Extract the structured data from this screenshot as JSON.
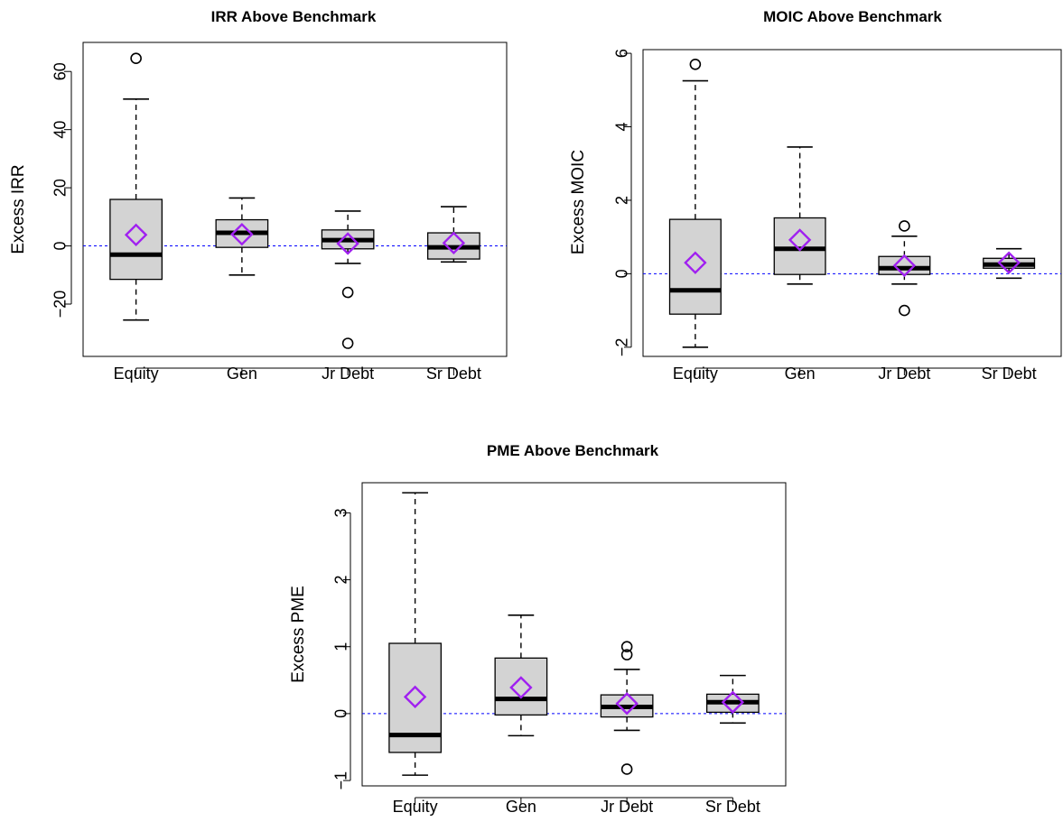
{
  "colors": {
    "box_fill": "#d3d3d3",
    "outline": "#000000",
    "mean_marker": "#a020f0",
    "reference_line": "#0000ff"
  },
  "chart_data": [
    {
      "type": "box",
      "title": "IRR Above Benchmark",
      "xlabel": "",
      "ylabel": "Excess IRR",
      "categories": [
        "Equity",
        "Gen",
        "Jr Debt",
        "Sr Debt"
      ],
      "y_ticks": [
        -20,
        0,
        20,
        40,
        60
      ],
      "y_tick_labels": [
        "−20",
        "0",
        "20",
        "40",
        "60"
      ],
      "ylim": [
        -38,
        70
      ],
      "reference_line": 0,
      "mean_marker": "diamond",
      "boxes": [
        {
          "lower_whisker": -25.5,
          "q1": -11.5,
          "median": -3,
          "q3": 16,
          "upper_whisker": 50.5,
          "mean": 3.8,
          "outliers": [
            64.5
          ]
        },
        {
          "lower_whisker": -10,
          "q1": -0.5,
          "median": 4.5,
          "q3": 9,
          "upper_whisker": 16.5,
          "mean": 4,
          "outliers": []
        },
        {
          "lower_whisker": -6,
          "q1": -1,
          "median": 2,
          "q3": 5.5,
          "upper_whisker": 12,
          "mean": 0.8,
          "outliers": [
            -16,
            -33.5
          ]
        },
        {
          "lower_whisker": -5.5,
          "q1": -4.5,
          "median": -0.5,
          "q3": 4.5,
          "upper_whisker": 13.5,
          "mean": 1,
          "outliers": []
        }
      ]
    },
    {
      "type": "box",
      "title": "MOIC Above Benchmark",
      "xlabel": "",
      "ylabel": "Excess MOIC",
      "categories": [
        "Equity",
        "Gen",
        "Jr Debt",
        "Sr Debt"
      ],
      "y_ticks": [
        -2,
        0,
        2,
        4,
        6
      ],
      "y_tick_labels": [
        "−2",
        "0",
        "2",
        "4",
        "6"
      ],
      "ylim": [
        -2.25,
        6.1
      ],
      "reference_line": 0,
      "mean_marker": "diamond",
      "boxes": [
        {
          "lower_whisker": -2,
          "q1": -1.1,
          "median": -0.45,
          "q3": 1.48,
          "upper_whisker": 5.25,
          "mean": 0.3,
          "outliers": [
            5.7
          ]
        },
        {
          "lower_whisker": -0.28,
          "q1": -0.02,
          "median": 0.68,
          "q3": 1.52,
          "upper_whisker": 3.45,
          "mean": 0.92,
          "outliers": []
        },
        {
          "lower_whisker": -0.28,
          "q1": -0.02,
          "median": 0.15,
          "q3": 0.47,
          "upper_whisker": 1.02,
          "mean": 0.22,
          "outliers": [
            1.3,
            -1.0
          ]
        },
        {
          "lower_whisker": -0.12,
          "q1": 0.15,
          "median": 0.25,
          "q3": 0.42,
          "upper_whisker": 0.68,
          "mean": 0.3,
          "outliers": []
        }
      ]
    },
    {
      "type": "box",
      "title": "PME Above Benchmark",
      "xlabel": "",
      "ylabel": "Excess PME",
      "categories": [
        "Equity",
        "Gen",
        "Jr Debt",
        "Sr Debt"
      ],
      "y_ticks": [
        -1,
        0,
        1,
        2,
        3
      ],
      "y_tick_labels": [
        "−1",
        "0",
        "1",
        "2",
        "3"
      ],
      "ylim": [
        -1.08,
        3.45
      ],
      "reference_line": 0,
      "mean_marker": "diamond",
      "boxes": [
        {
          "lower_whisker": -0.92,
          "q1": -0.58,
          "median": -0.32,
          "q3": 1.05,
          "upper_whisker": 3.3,
          "mean": 0.25,
          "outliers": []
        },
        {
          "lower_whisker": -0.33,
          "q1": -0.02,
          "median": 0.22,
          "q3": 0.83,
          "upper_whisker": 1.47,
          "mean": 0.39,
          "outliers": []
        },
        {
          "lower_whisker": -0.25,
          "q1": -0.05,
          "median": 0.1,
          "q3": 0.28,
          "upper_whisker": 0.66,
          "mean": 0.15,
          "outliers": [
            1.0,
            0.88,
            -0.83
          ]
        },
        {
          "lower_whisker": -0.14,
          "q1": 0.02,
          "median": 0.17,
          "q3": 0.29,
          "upper_whisker": 0.57,
          "mean": 0.17,
          "outliers": []
        }
      ]
    }
  ]
}
